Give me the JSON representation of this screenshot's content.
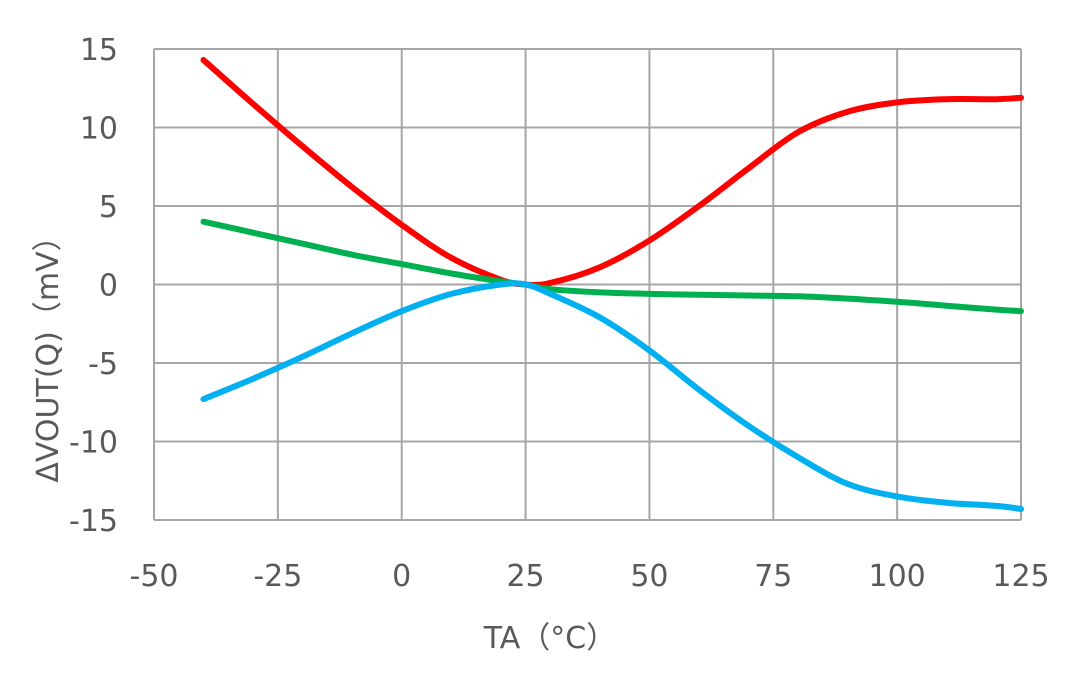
{
  "chart_data": {
    "type": "line",
    "title": "",
    "xlabel": "TA（°C）",
    "ylabel": "ΔVOUT(Q)（mV）",
    "xlim": [
      -50,
      125
    ],
    "ylim": [
      -15,
      15
    ],
    "xticks": [
      -50,
      -25,
      0,
      25,
      50,
      75,
      100,
      125
    ],
    "yticks": [
      15,
      10,
      5,
      0,
      -5,
      -10,
      -15
    ],
    "xtick_labels": [
      "-50",
      "-25",
      "0",
      "25",
      "50",
      "75",
      "100",
      "125"
    ],
    "ytick_labels": [
      "15",
      "10",
      "5",
      "0",
      "-5",
      "-10",
      "-15"
    ],
    "grid": true,
    "legend": "none",
    "series": [
      {
        "color": "#ff0000",
        "x": [
          -40,
          -30,
          -20,
          -10,
          0,
          10,
          20,
          25,
          30,
          40,
          50,
          60,
          70,
          80,
          90,
          100,
          110,
          120,
          125
        ],
        "y": [
          14.3,
          11.5,
          8.8,
          6.2,
          3.8,
          1.7,
          0.3,
          0.0,
          0.1,
          1.1,
          2.8,
          5.0,
          7.4,
          9.7,
          11.0,
          11.6,
          11.8,
          11.8,
          11.9
        ]
      },
      {
        "color": "#00b050",
        "x": [
          -40,
          -30,
          -20,
          -10,
          0,
          10,
          20,
          25,
          30,
          40,
          50,
          60,
          70,
          80,
          90,
          100,
          110,
          120,
          125
        ],
        "y": [
          4.0,
          3.3,
          2.6,
          1.9,
          1.3,
          0.7,
          0.2,
          0.0,
          -0.3,
          -0.5,
          -0.6,
          -0.65,
          -0.7,
          -0.75,
          -0.9,
          -1.1,
          -1.35,
          -1.6,
          -1.7
        ]
      },
      {
        "color": "#00b0f0",
        "x": [
          -40,
          -30,
          -20,
          -10,
          0,
          10,
          20,
          25,
          30,
          40,
          50,
          60,
          70,
          80,
          90,
          100,
          110,
          120,
          125
        ],
        "y": [
          -7.3,
          -6.0,
          -4.6,
          -3.1,
          -1.7,
          -0.6,
          0.0,
          0.0,
          -0.6,
          -2.1,
          -4.2,
          -6.7,
          -9.0,
          -11.0,
          -12.7,
          -13.5,
          -13.9,
          -14.1,
          -14.3
        ]
      }
    ]
  }
}
